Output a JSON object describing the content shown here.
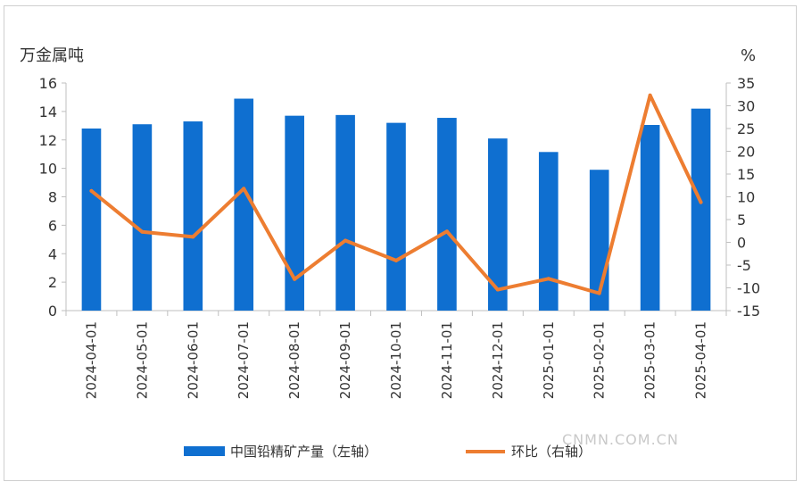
{
  "chart_data": {
    "type": "bar",
    "categories": [
      "2024-04-01",
      "2024-05-01",
      "2024-06-01",
      "2024-07-01",
      "2024-08-01",
      "2024-09-01",
      "2024-10-01",
      "2024-11-01",
      "2024-12-01",
      "2025-01-01",
      "2025-02-01",
      "2025-03-01",
      "2025-04-01"
    ],
    "series": [
      {
        "name": "中国铅精矿产量（左轴）",
        "type": "bar",
        "axis": "left",
        "color": "#0f6fd0",
        "values": [
          12.8,
          13.1,
          13.3,
          14.9,
          13.7,
          13.75,
          13.2,
          13.55,
          12.1,
          11.15,
          9.9,
          13.05,
          14.2
        ]
      },
      {
        "name": "环比（右轴）",
        "type": "line",
        "axis": "right",
        "color": "#ed7d31",
        "values": [
          11.3,
          2.3,
          1.2,
          11.8,
          -8.1,
          0.4,
          -4.0,
          2.4,
          -10.4,
          -8.0,
          -11.2,
          32.3,
          8.8
        ]
      }
    ],
    "left_axis": {
      "label": "万金属吨",
      "ylim": [
        0,
        16
      ],
      "ticks": [
        "0",
        "2",
        "4",
        "6",
        "8",
        "10",
        "12",
        "14",
        "16"
      ]
    },
    "right_axis": {
      "label": "%",
      "ylim": [
        -15,
        35
      ],
      "ticks": [
        "-15",
        "-10",
        "-5",
        "0",
        "5",
        "10",
        "15",
        "20",
        "25",
        "30",
        "35"
      ]
    },
    "grid": false,
    "legend": "bottom"
  },
  "watermark": "CNMN.COM.CN"
}
